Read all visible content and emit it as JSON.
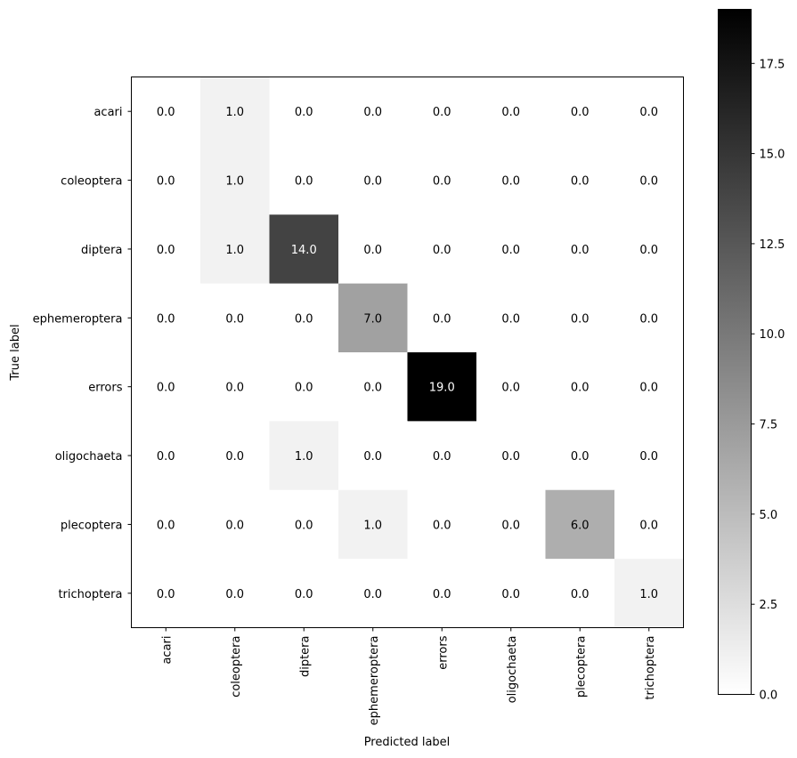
{
  "chart_data": {
    "type": "heatmap",
    "title": "",
    "xlabel": "Predicted label",
    "ylabel": "True label",
    "x_categories": [
      "acari",
      "coleoptera",
      "diptera",
      "ephemeroptera",
      "errors",
      "oligochaeta",
      "plecoptera",
      "trichoptera"
    ],
    "y_categories": [
      "acari",
      "coleoptera",
      "diptera",
      "ephemeroptera",
      "errors",
      "oligochaeta",
      "plecoptera",
      "trichoptera"
    ],
    "values": [
      [
        0,
        1,
        0,
        0,
        0,
        0,
        0,
        0
      ],
      [
        0,
        1,
        0,
        0,
        0,
        0,
        0,
        0
      ],
      [
        0,
        1,
        14,
        0,
        0,
        0,
        0,
        0
      ],
      [
        0,
        0,
        0,
        7,
        0,
        0,
        0,
        0
      ],
      [
        0,
        0,
        0,
        0,
        19,
        0,
        0,
        0
      ],
      [
        0,
        0,
        1,
        0,
        0,
        0,
        0,
        0
      ],
      [
        0,
        0,
        0,
        1,
        0,
        0,
        6,
        0
      ],
      [
        0,
        0,
        0,
        0,
        0,
        0,
        0,
        1
      ]
    ],
    "value_format": "0.0",
    "colormap": "gray_r",
    "colorbar": {
      "range": [
        0,
        19
      ],
      "ticks": [
        "0.0",
        "2.5",
        "5.0",
        "7.5",
        "10.0",
        "12.5",
        "15.0",
        "17.5"
      ]
    },
    "grid": false
  }
}
